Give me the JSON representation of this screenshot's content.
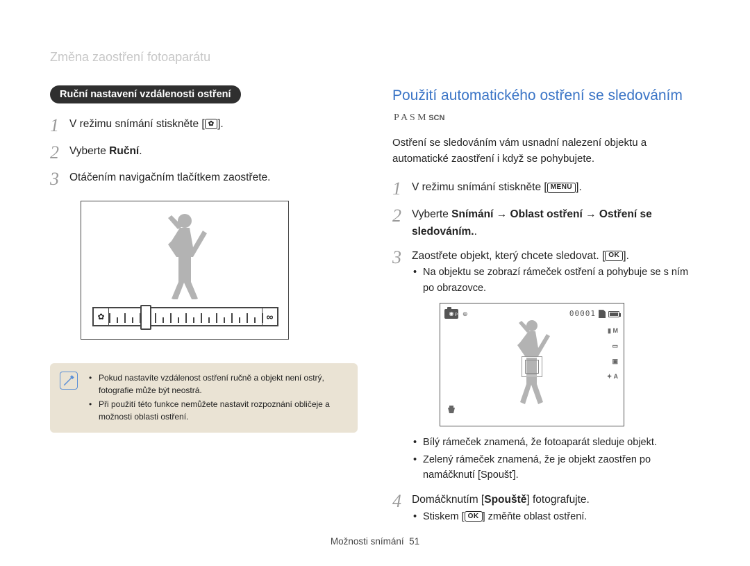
{
  "header": "Změna zaostření fotoaparátu",
  "left": {
    "pill": "Ruční nastavení vzdálenosti ostření",
    "step1_a": "V režimu snímání stiskněte [",
    "step1_key": "✿",
    "step1_b": "].",
    "step2_a": "Vyberte ",
    "step2_bold": "Ruční",
    "step2_b": ".",
    "step3": "Otáčením navigačním tlačítkem zaostřete.",
    "note1": "Pokud nastavíte vzdálenost ostření ručně a objekt není ostrý, fotografie může být neostrá.",
    "note2": "Při použití této funkce nemůžete nastavit rozpoznání obličeje a možnosti oblasti ostření.",
    "slider": {
      "knob_percent": 24,
      "left_icon": "✿",
      "right_icon": "∞"
    }
  },
  "right": {
    "title_a": "Použití automatického ostření se sledováním",
    "modes_letters": "P A S M",
    "modes_scn": "SCN",
    "intro": "Ostření se sledováním vám usnadní nalezení objektu a automatické zaostření i když se pohybujete.",
    "step1_a": "V režimu snímání stiskněte [",
    "step1_key": "MENU",
    "step1_b": "].",
    "step2_a": "Vyberte ",
    "step2_bold": "Snímání → Oblast ostření → Ostření se sledováním.",
    "step2_b": ".",
    "step3_a": "Zaostřete objekt, který chcete sledovat. [",
    "step3_key": "OK",
    "step3_b": "].",
    "step3_sub": "Na objektu se zobrazí rámeček ostření a pohybuje se s ním po obrazovce.",
    "lcd": {
      "counter": "00001",
      "side1": "▮ M",
      "side2": "▭",
      "side3": "▣",
      "side4": "✦ A"
    },
    "bullet_a": "Bílý rámeček znamená, že fotoaparát sleduje objekt.",
    "bullet_b": "Zelený rámeček znamená, že je objekt zaostřen po namáčknutí [Spoušť].",
    "step4_a": "Domáčknutím [",
    "step4_bold": "Spouště",
    "step4_b": "] fotografujte.",
    "step4_sub_a": "Stiskem [",
    "step4_sub_key": "OK",
    "step4_sub_b": "] změňte oblast ostření."
  },
  "footer_a": "Možnosti snímání",
  "footer_page": "51"
}
